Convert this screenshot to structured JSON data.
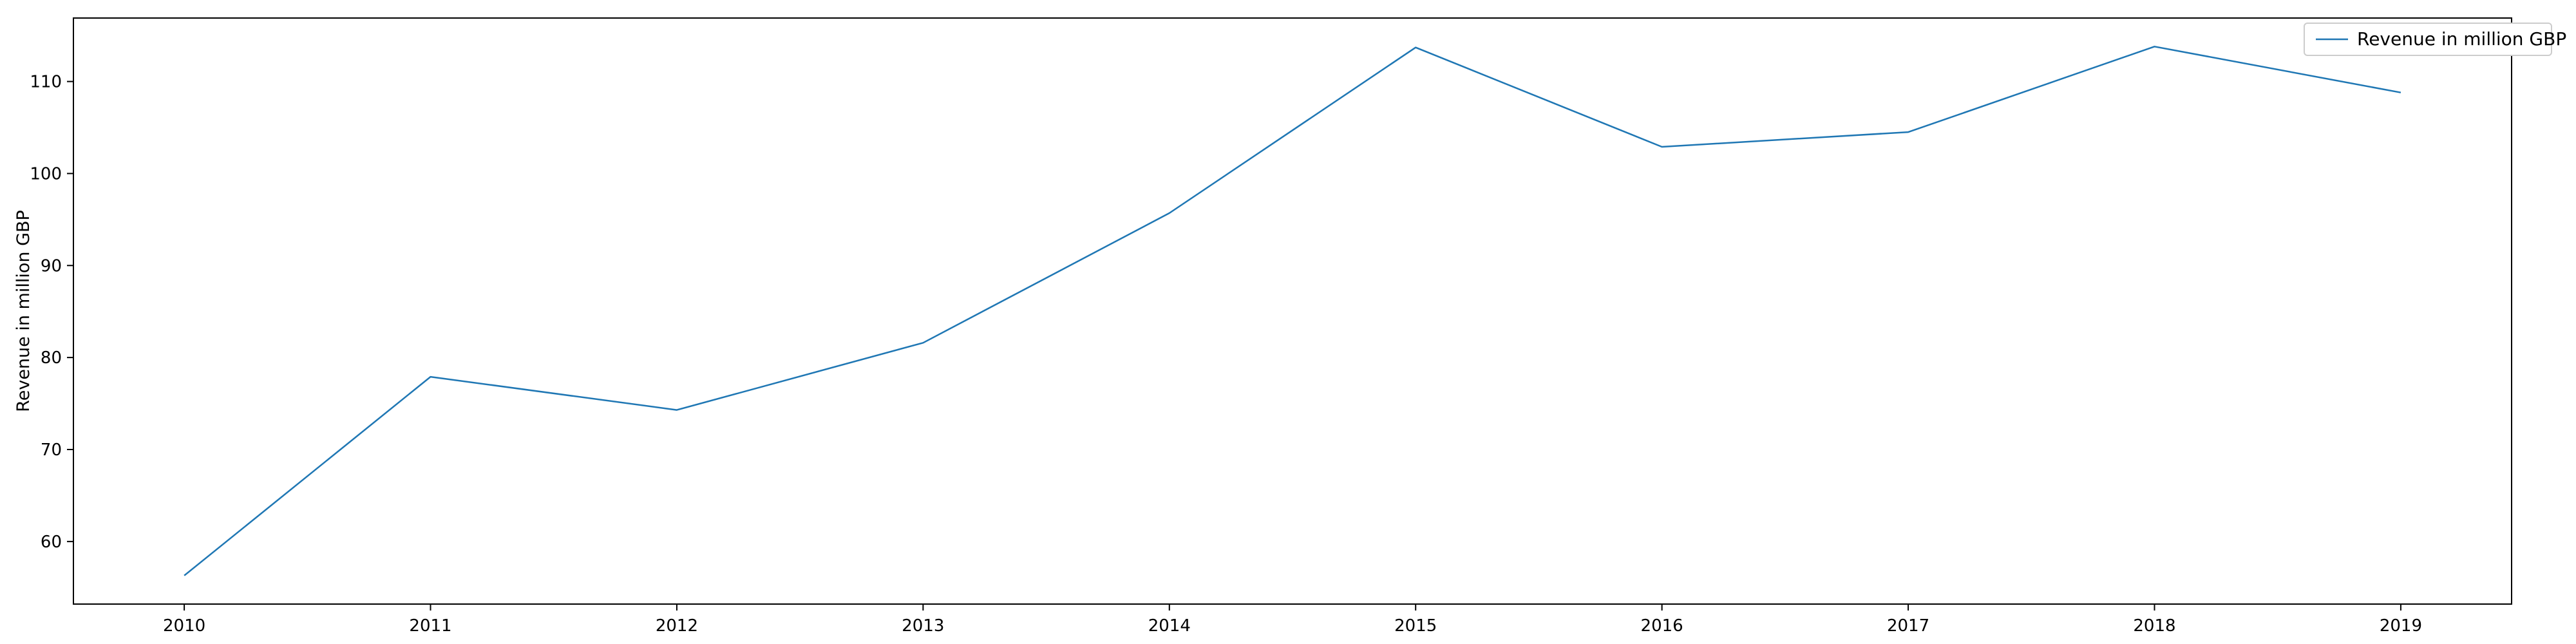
{
  "chart_data": {
    "type": "line",
    "title": "",
    "xlabel": "",
    "ylabel": "Revenue in million GBP",
    "x": [
      2010,
      2011,
      2012,
      2013,
      2014,
      2015,
      2016,
      2017,
      2018,
      2019
    ],
    "series": [
      {
        "name": "Revenue in million GBP",
        "color": "#1f77b4",
        "values": [
          56.3,
          77.9,
          74.3,
          81.6,
          95.7,
          113.7,
          102.9,
          104.5,
          113.8,
          108.8
        ]
      }
    ],
    "xlim": [
      2009.55,
      2019.45
    ],
    "ylim": [
      53.2,
      116.9
    ],
    "yticks": [
      60,
      70,
      80,
      90,
      100,
      110
    ],
    "grid": false,
    "legend_position": "top-right"
  }
}
